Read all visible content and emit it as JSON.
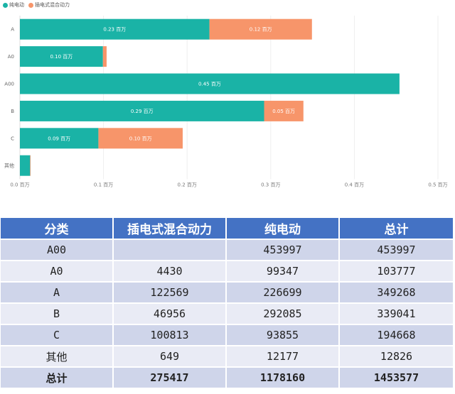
{
  "chart_data": {
    "type": "bar",
    "orientation": "horizontal",
    "stacked": true,
    "categories": [
      "A",
      "A0",
      "A00",
      "B",
      "C",
      "其他"
    ],
    "series": [
      {
        "name": "纯电动",
        "color": "#1ab3a6",
        "values": [
          0.2267,
          0.0993,
          0.454,
          0.2921,
          0.0939,
          0.0122
        ],
        "labels": [
          "0.23 百万",
          "0.10 百万",
          "0.45 百万",
          "0.29 百万",
          "0.09 百万",
          ""
        ]
      },
      {
        "name": "插电式混合动力",
        "color": "#f7956a",
        "values": [
          0.1226,
          0.0044,
          0,
          0.047,
          0.1008,
          0.0006
        ],
        "labels": [
          "0.12 百万",
          "",
          "",
          "0.05 百万",
          "0.10 百万",
          ""
        ]
      }
    ],
    "xticks": [
      "0.0 百万",
      "0.1 百万",
      "0.2 百万",
      "0.3 百万",
      "0.4 百万",
      "0.5 百万"
    ],
    "xlim": [
      0,
      0.5
    ],
    "grid": true,
    "legend": "top-left"
  },
  "table": {
    "headers": [
      "分类",
      "插电式混合动力",
      "纯电动",
      "总计"
    ],
    "rows": [
      [
        "A00",
        "",
        "453997",
        "453997"
      ],
      [
        "A0",
        "4430",
        "99347",
        "103777"
      ],
      [
        "A",
        "122569",
        "226699",
        "349268"
      ],
      [
        "B",
        "46956",
        "292085",
        "339041"
      ],
      [
        "C",
        "100813",
        "93855",
        "194668"
      ],
      [
        "其他",
        "649",
        "12177",
        "12826"
      ],
      [
        "总计",
        "275417",
        "1178160",
        "1453577"
      ]
    ]
  }
}
